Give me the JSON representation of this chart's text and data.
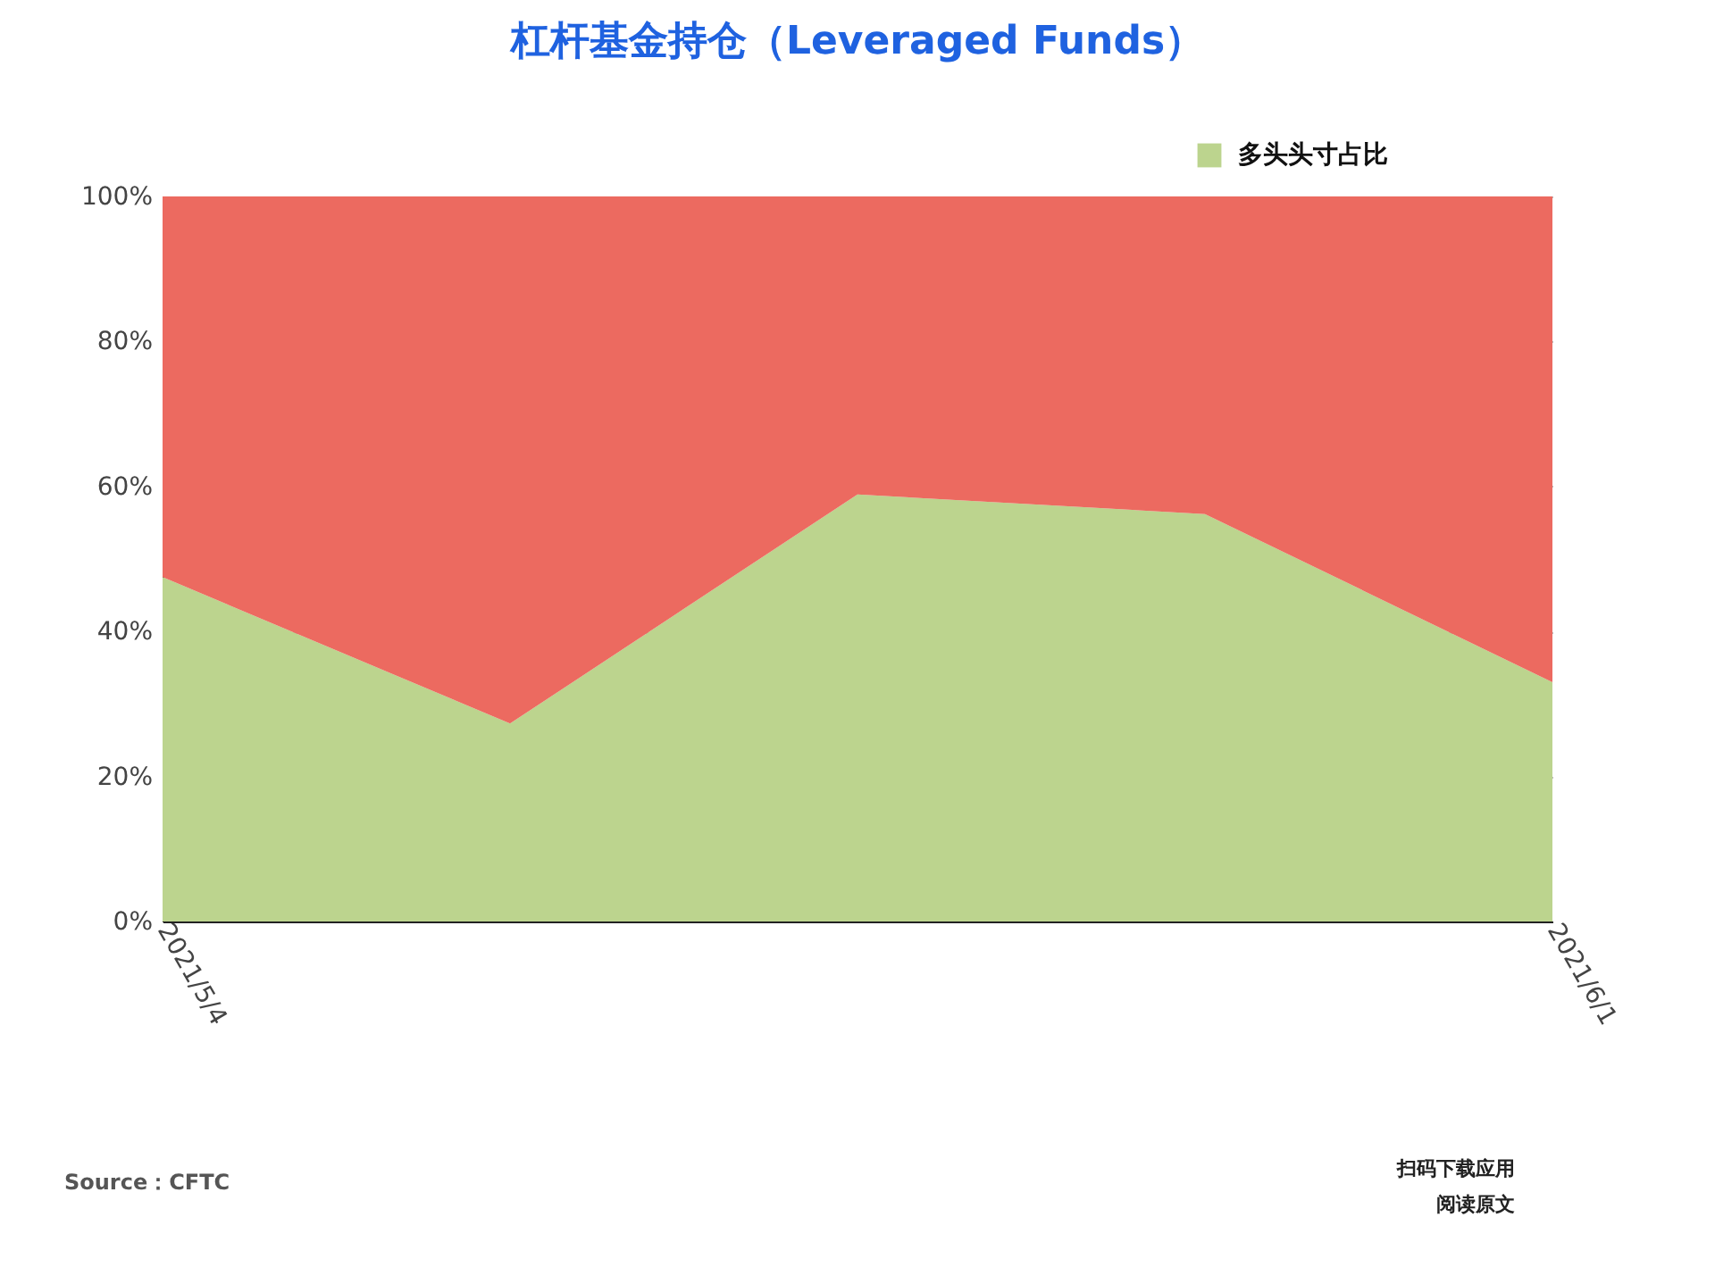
{
  "chart_data": {
    "type": "area",
    "title": "杠杆基金持仓（Leveraged Funds）",
    "categories": [
      "2021/5/4",
      null,
      null,
      null,
      "2021/6/1"
    ],
    "stacked": true,
    "series": [
      {
        "name": "多头头寸占比",
        "color": "#bcd48e",
        "values": [
          47.5,
          27.3,
          58.9,
          56.2,
          33.0
        ]
      },
      {
        "color": "#ec6a60",
        "values": [
          52.5,
          72.7,
          41.1,
          43.8,
          67.0
        ]
      }
    ],
    "ylim": [
      0,
      100
    ],
    "yticks": [
      {
        "value": 0,
        "label": "0%"
      },
      {
        "value": 20,
        "label": "20%"
      },
      {
        "value": 40,
        "label": "40%"
      },
      {
        "value": 60,
        "label": "60%"
      },
      {
        "value": 80,
        "label": "80%"
      },
      {
        "value": 100,
        "label": "100%"
      }
    ],
    "grid": "y",
    "legend": "top right",
    "annotations": [
      "Source：CFTC",
      "扫码下载应用",
      "阅读原文"
    ]
  }
}
